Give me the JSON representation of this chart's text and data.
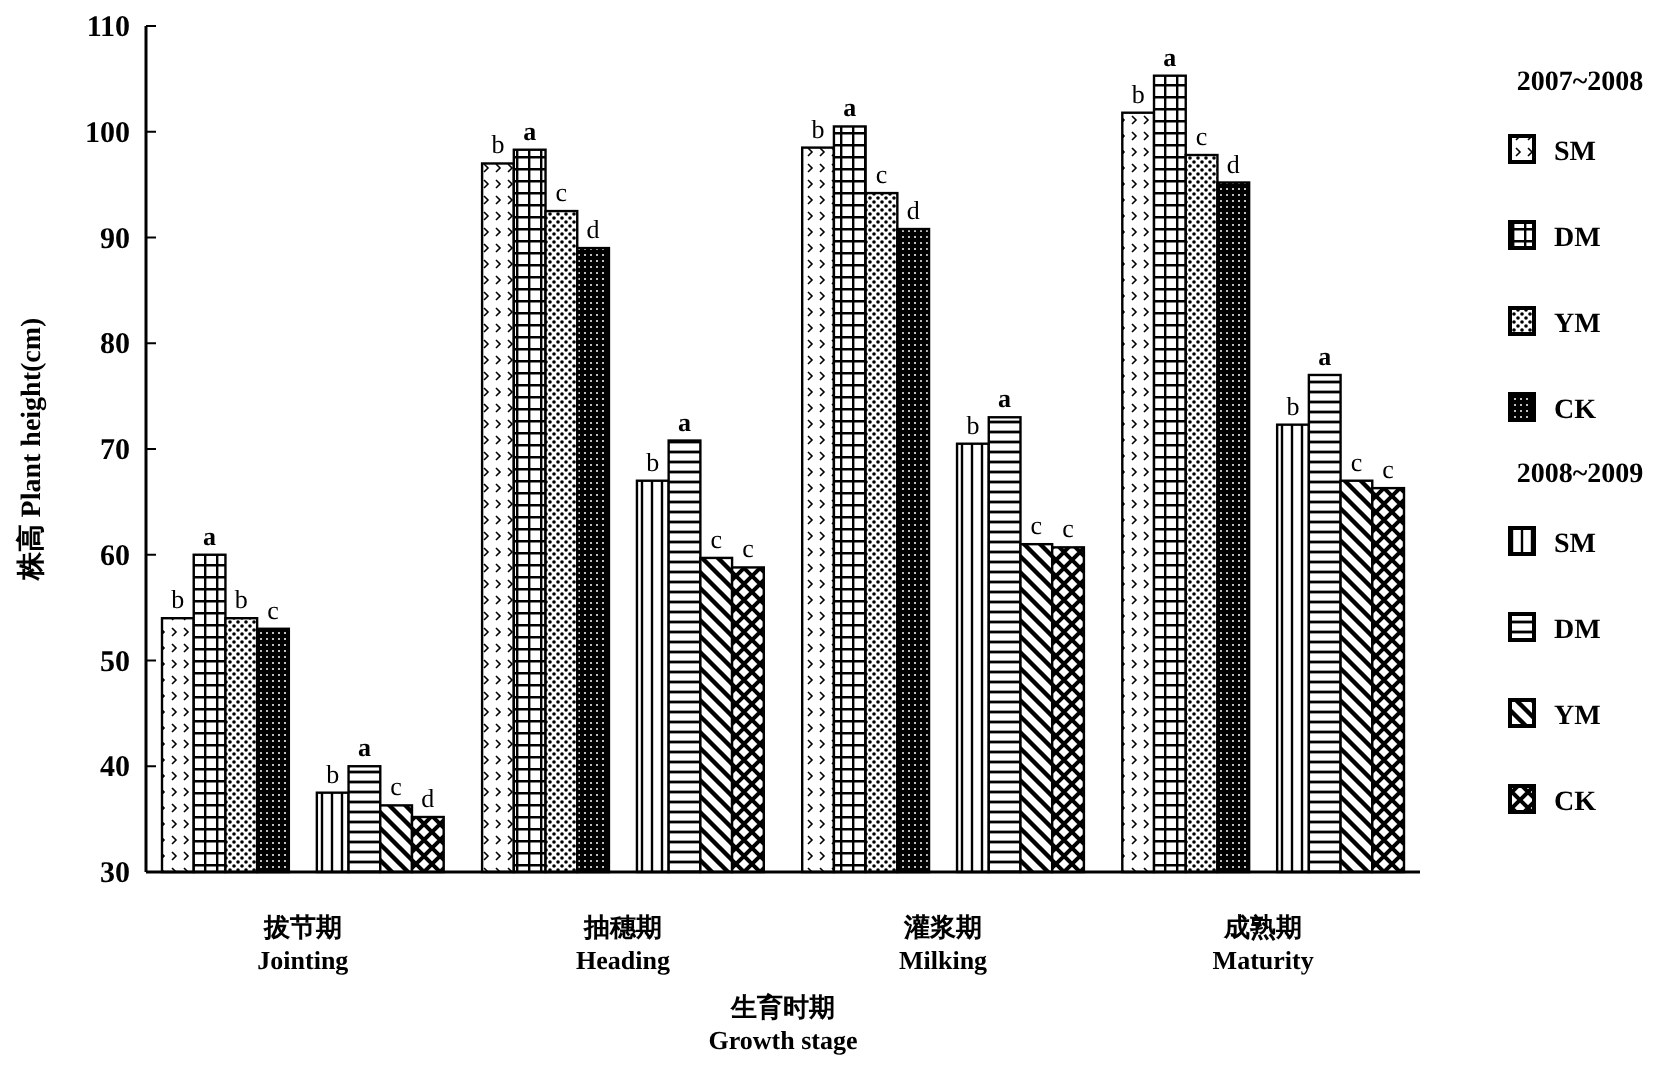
{
  "chart_data": {
    "type": "bar",
    "xlabel": "生育时期\nGrowth stage",
    "ylabel": "株高 Plant height(cm)",
    "categories": [
      "拔节期\nJointing",
      "抽穗期\nHeading",
      "灌浆期\nMilking",
      "成熟期\nMaturity"
    ],
    "ylim": [
      30,
      110
    ],
    "yticks": [
      30,
      40,
      50,
      60,
      70,
      80,
      90,
      100,
      110
    ],
    "grid": false,
    "legend": "right",
    "annotations": [
      "2007~2008",
      "2008~2009"
    ],
    "series": [
      {
        "name": "SM",
        "color": "#000000",
        "values": [
          54,
          97,
          98.5,
          101.8
        ],
        "value_labels": [
          "b",
          "b",
          "b",
          "b"
        ]
      },
      {
        "name": "DM",
        "color": "#000000",
        "values": [
          60,
          98.3,
          100.5,
          105.3
        ],
        "value_labels": [
          "a",
          "a",
          "a",
          "a"
        ]
      },
      {
        "name": "YM",
        "color": "#000000",
        "values": [
          54,
          92.5,
          94.2,
          97.8
        ],
        "value_labels": [
          "b",
          "c",
          "c",
          "c"
        ]
      },
      {
        "name": "CK",
        "color": "#000000",
        "values": [
          53,
          89,
          90.8,
          95.2
        ],
        "value_labels": [
          "c",
          "d",
          "d",
          "d"
        ]
      },
      {
        "name": "SM",
        "color": "#000000",
        "values": [
          37.5,
          67,
          70.5,
          72.3
        ],
        "value_labels": [
          "b",
          "b",
          "b",
          "b"
        ]
      },
      {
        "name": "DM",
        "color": "#000000",
        "values": [
          40,
          70.8,
          73,
          77
        ],
        "value_labels": [
          "a",
          "a",
          "a",
          "a"
        ]
      },
      {
        "name": "YM",
        "color": "#000000",
        "values": [
          36.3,
          59.7,
          61,
          67
        ],
        "value_labels": [
          "c",
          "c",
          "c",
          "c"
        ]
      },
      {
        "name": "CK",
        "color": "#000000",
        "values": [
          35.2,
          58.8,
          60.7,
          66.3
        ],
        "value_labels": [
          "d",
          "c",
          "c",
          "c"
        ]
      }
    ]
  }
}
